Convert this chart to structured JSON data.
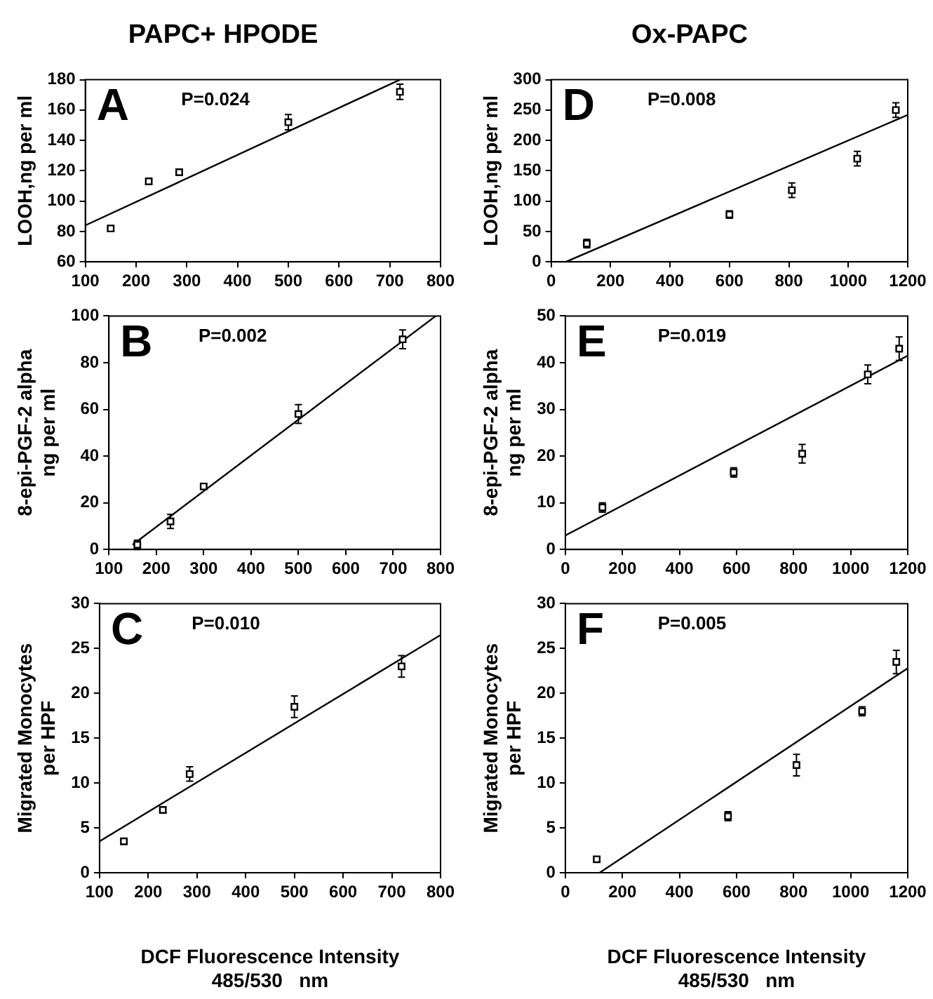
{
  "chart_data": [
    {
      "type": "scatter",
      "title": "PAPC+ HPODE",
      "ylabel": "LOOH,ng per ml",
      "annotations": [
        "A",
        "P=0.024"
      ],
      "xlim": [
        100,
        800
      ],
      "xticks": [
        100,
        200,
        300,
        400,
        500,
        600,
        700,
        800
      ],
      "ylim": [
        60,
        180
      ],
      "yticks": [
        60,
        80,
        100,
        120,
        140,
        160,
        180
      ],
      "grid": false,
      "legend": false,
      "series": [
        {
          "type": "scatter",
          "color": "#000000",
          "marker": "square",
          "x": [
            150,
            225,
            285,
            500,
            720
          ],
          "values": [
            82,
            113,
            119,
            152,
            172
          ],
          "errors": [
            1,
            2,
            2,
            5,
            5
          ]
        },
        {
          "type": "line",
          "color": "#000000",
          "marker": "none",
          "line_style": "solid",
          "x": [
            100,
            720
          ],
          "values": [
            84,
            180
          ]
        }
      ]
    },
    {
      "type": "scatter",
      "title": "Ox-PAPC",
      "ylabel": "LOOH,ng per ml",
      "annotations": [
        "D",
        "P=0.008"
      ],
      "xlim": [
        0,
        1200
      ],
      "xticks": [
        0,
        200,
        400,
        600,
        800,
        1000,
        1200
      ],
      "ylim": [
        0,
        300
      ],
      "yticks": [
        0,
        50,
        100,
        150,
        200,
        250,
        300
      ],
      "grid": false,
      "legend": false,
      "series": [
        {
          "type": "scatter",
          "color": "#000000",
          "marker": "square",
          "x": [
            120,
            600,
            810,
            1030,
            1160
          ],
          "values": [
            30,
            78,
            118,
            170,
            250
          ],
          "errors": [
            7,
            6,
            12,
            12,
            12
          ]
        },
        {
          "type": "line",
          "color": "#000000",
          "marker": "none",
          "line_style": "solid",
          "x": [
            50,
            1200
          ],
          "values": [
            0,
            242
          ]
        }
      ]
    },
    {
      "type": "scatter",
      "ylabel": "8-epi-PGF-2 alpha\nng per ml",
      "annotations": [
        "B",
        "P=0.002"
      ],
      "xlim": [
        100,
        800
      ],
      "xticks": [
        100,
        200,
        300,
        400,
        500,
        600,
        700,
        800
      ],
      "ylim": [
        0,
        100
      ],
      "yticks": [
        0,
        20,
        40,
        60,
        80,
        100
      ],
      "grid": false,
      "legend": false,
      "series": [
        {
          "type": "scatter",
          "color": "#000000",
          "marker": "square",
          "x": [
            160,
            230,
            300,
            500,
            720
          ],
          "values": [
            2,
            12,
            27,
            58,
            90
          ],
          "errors": [
            2,
            3,
            1,
            4,
            4
          ]
        },
        {
          "type": "line",
          "color": "#000000",
          "marker": "none",
          "line_style": "solid",
          "x": [
            150,
            790
          ],
          "values": [
            2,
            100
          ]
        }
      ]
    },
    {
      "type": "scatter",
      "ylabel": "8-epi-PGF-2 alpha\nng per ml",
      "annotations": [
        "E",
        "P=0.019"
      ],
      "xlim": [
        0,
        1200
      ],
      "xticks": [
        0,
        200,
        400,
        600,
        800,
        1000,
        1200
      ],
      "ylim": [
        0,
        50
      ],
      "yticks": [
        0,
        10,
        20,
        30,
        40,
        50
      ],
      "grid": false,
      "legend": false,
      "series": [
        {
          "type": "scatter",
          "color": "#000000",
          "marker": "square",
          "x": [
            130,
            590,
            830,
            1060,
            1170
          ],
          "values": [
            9,
            16.5,
            20.5,
            37.5,
            43
          ],
          "errors": [
            1,
            1,
            2,
            2,
            2.5
          ]
        },
        {
          "type": "line",
          "color": "#000000",
          "marker": "none",
          "line_style": "solid",
          "x": [
            0,
            1200
          ],
          "values": [
            3,
            41.5
          ]
        }
      ]
    },
    {
      "type": "scatter",
      "ylabel": "Migrated Monocytes\nper HPF",
      "xlabel": "DCF Fluorescence Intensity\n485/530   nm",
      "annotations": [
        "C",
        "P=0.010"
      ],
      "xlim": [
        100,
        800
      ],
      "xticks": [
        100,
        200,
        300,
        400,
        500,
        600,
        700,
        800
      ],
      "ylim": [
        0,
        30
      ],
      "yticks": [
        0,
        5,
        10,
        15,
        20,
        25,
        30
      ],
      "grid": false,
      "legend": false,
      "series": [
        {
          "type": "scatter",
          "color": "#000000",
          "marker": "square",
          "x": [
            150,
            230,
            285,
            500,
            720
          ],
          "values": [
            3.5,
            7,
            11,
            18.5,
            23
          ],
          "errors": [
            0.3,
            0.3,
            0.8,
            1.2,
            1.2
          ]
        },
        {
          "type": "line",
          "color": "#000000",
          "marker": "none",
          "line_style": "solid",
          "x": [
            100,
            800
          ],
          "values": [
            3.5,
            26.5
          ]
        }
      ]
    },
    {
      "type": "scatter",
      "ylabel": "Migrated Monocytes\nper HPF",
      "xlabel": "DCF Fluorescence Intensity\n485/530   nm",
      "annotations": [
        "F",
        "P=0.005"
      ],
      "xlim": [
        0,
        1200
      ],
      "xticks": [
        0,
        200,
        400,
        600,
        800,
        1000,
        1200
      ],
      "ylim": [
        0,
        30
      ],
      "yticks": [
        0,
        5,
        10,
        15,
        20,
        25,
        30
      ],
      "grid": false,
      "legend": false,
      "series": [
        {
          "type": "scatter",
          "color": "#000000",
          "marker": "square",
          "x": [
            110,
            570,
            810,
            1040,
            1160
          ],
          "values": [
            1.5,
            6.3,
            12,
            18,
            23.5
          ],
          "errors": [
            0.3,
            0.5,
            1.2,
            0.5,
            1.3
          ]
        },
        {
          "type": "line",
          "color": "#000000",
          "marker": "none",
          "line_style": "solid",
          "x": [
            120,
            1200
          ],
          "values": [
            0,
            22.8
          ]
        }
      ]
    }
  ]
}
